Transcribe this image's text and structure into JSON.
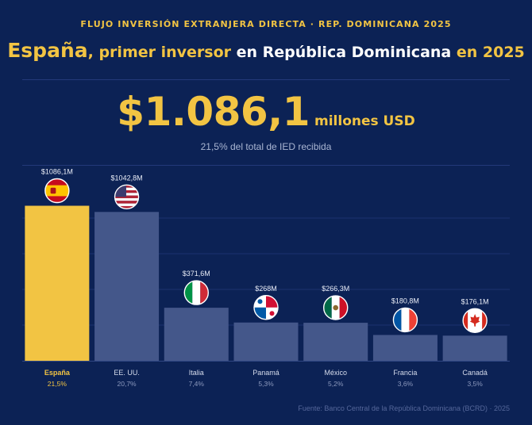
{
  "header": {
    "kicker": "FLUJO INVERSIÓN EXTRANJERA DIRECTA · REP. DOMINICANA 2025",
    "headline": {
      "country": "España",
      "part1": ", primer inversor ",
      "part2": "en República Dominicana",
      "part3": " en 2025"
    }
  },
  "highlight": {
    "amount": "$1.086,1",
    "unit": "millones USD",
    "share_text": "21,5% del total de IED recibida"
  },
  "colors": {
    "background": "#0c2255",
    "accent": "#f2c443",
    "bar_default": "#44578a"
  },
  "chart_data": {
    "type": "bar",
    "categories": [
      "España",
      "EE. UU.",
      "Italia",
      "Panamá",
      "México",
      "Francia",
      "Canadá"
    ],
    "values": [
      1086.1,
      1042.8,
      371.6,
      268,
      266.3,
      180.8,
      176.1
    ],
    "value_labels": [
      "$1086,1M",
      "$1042,8M",
      "$371,6M",
      "$268M",
      "$266,3M",
      "$180,8M",
      "$176,1M"
    ],
    "shares": [
      "21,5%",
      "20,7%",
      "7,4%",
      "5,3%",
      "5,2%",
      "3,6%",
      "3,5%"
    ],
    "flags": [
      "spain-flag",
      "usa-flag",
      "italy-flag",
      "panama-flag",
      "mexico-flag",
      "france-flag",
      "canada-flag"
    ],
    "highlighted_index": 0,
    "ylim": [
      0,
      1250
    ],
    "grid": true
  },
  "footer": {
    "source": "Fuente: Banco Central de la República Dominicana (BCRD) · 2025"
  }
}
